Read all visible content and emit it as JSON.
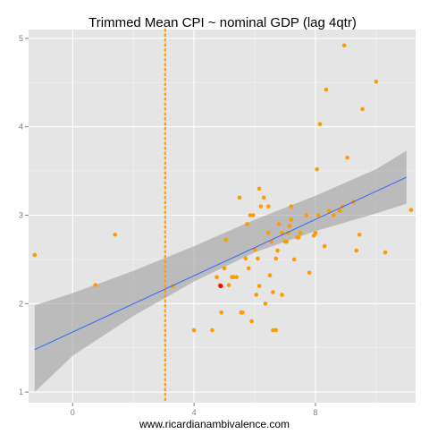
{
  "chart_data": {
    "type": "scatter",
    "title": "Trimmed Mean CPI ~ nominal GDP (lag 4qtr)",
    "xlabel": "www.ricardianambivalence.com",
    "ylabel": "",
    "xlim": [
      -1.45,
      11.3
    ],
    "ylim": [
      0.88,
      5.1
    ],
    "x_ticks": [
      0,
      4,
      8
    ],
    "y_ticks": [
      1,
      2,
      3,
      4,
      5
    ],
    "grid": true,
    "background_color": "#e5e5e5",
    "grid_color": "#ffffff",
    "point_color": "#ff9a00",
    "highlight_color": "#ff0000",
    "fit_line_color": "#3366ff",
    "band_color": "#999999",
    "vline_color": "#ff9a00",
    "vline_x": 3.05,
    "vline_style": "dotted",
    "fit_line": {
      "x": [
        -1.25,
        11.0
      ],
      "y": [
        1.48,
        3.43
      ]
    },
    "confidence_band": {
      "x": [
        -1.25,
        0,
        2,
        4,
        6,
        8,
        10,
        11.0
      ],
      "upper": [
        1.98,
        2.12,
        2.37,
        2.65,
        2.95,
        3.22,
        3.52,
        3.73
      ],
      "lower": [
        1.0,
        1.41,
        1.86,
        2.25,
        2.58,
        2.82,
        3.02,
        3.13
      ]
    },
    "points": [
      {
        "x": -1.25,
        "y": 2.55
      },
      {
        "x": 0.75,
        "y": 2.21
      },
      {
        "x": 1.4,
        "y": 2.78
      },
      {
        "x": 3.3,
        "y": 2.2
      },
      {
        "x": 4.0,
        "y": 1.7
      },
      {
        "x": 4.6,
        "y": 1.7
      },
      {
        "x": 4.75,
        "y": 2.3
      },
      {
        "x": 4.85,
        "y": 2.21
      },
      {
        "x": 4.9,
        "y": 1.9
      },
      {
        "x": 5.0,
        "y": 2.4
      },
      {
        "x": 5.05,
        "y": 2.72
      },
      {
        "x": 5.15,
        "y": 2.21
      },
      {
        "x": 5.25,
        "y": 2.3
      },
      {
        "x": 5.3,
        "y": 2.3
      },
      {
        "x": 5.4,
        "y": 2.3
      },
      {
        "x": 5.5,
        "y": 3.2
      },
      {
        "x": 5.55,
        "y": 1.9
      },
      {
        "x": 5.6,
        "y": 1.9
      },
      {
        "x": 5.7,
        "y": 2.51
      },
      {
        "x": 5.75,
        "y": 2.9
      },
      {
        "x": 5.8,
        "y": 2.4
      },
      {
        "x": 5.85,
        "y": 3.0
      },
      {
        "x": 5.9,
        "y": 1.8
      },
      {
        "x": 5.95,
        "y": 3.0
      },
      {
        "x": 6.0,
        "y": 2.61
      },
      {
        "x": 6.05,
        "y": 2.1
      },
      {
        "x": 6.1,
        "y": 2.51
      },
      {
        "x": 6.15,
        "y": 3.3
      },
      {
        "x": 6.15,
        "y": 2.2
      },
      {
        "x": 6.2,
        "y": 3.1
      },
      {
        "x": 6.3,
        "y": 3.2
      },
      {
        "x": 6.35,
        "y": 2.0
      },
      {
        "x": 6.45,
        "y": 3.1
      },
      {
        "x": 6.45,
        "y": 2.8
      },
      {
        "x": 6.5,
        "y": 2.32
      },
      {
        "x": 6.55,
        "y": 2.7
      },
      {
        "x": 6.6,
        "y": 2.13
      },
      {
        "x": 6.6,
        "y": 1.7
      },
      {
        "x": 6.7,
        "y": 1.7
      },
      {
        "x": 6.7,
        "y": 2.51
      },
      {
        "x": 6.75,
        "y": 2.6
      },
      {
        "x": 6.8,
        "y": 2.9
      },
      {
        "x": 6.9,
        "y": 2.1
      },
      {
        "x": 6.9,
        "y": 2.8
      },
      {
        "x": 7.0,
        "y": 2.7
      },
      {
        "x": 7.05,
        "y": 2.7
      },
      {
        "x": 7.1,
        "y": 2.8
      },
      {
        "x": 7.15,
        "y": 2.88
      },
      {
        "x": 7.2,
        "y": 2.95
      },
      {
        "x": 7.2,
        "y": 3.1
      },
      {
        "x": 7.3,
        "y": 2.5
      },
      {
        "x": 7.4,
        "y": 2.75
      },
      {
        "x": 7.45,
        "y": 2.75
      },
      {
        "x": 7.5,
        "y": 2.8
      },
      {
        "x": 7.7,
        "y": 3.0
      },
      {
        "x": 7.8,
        "y": 2.35
      },
      {
        "x": 7.95,
        "y": 2.77
      },
      {
        "x": 8.0,
        "y": 2.8
      },
      {
        "x": 8.05,
        "y": 3.52
      },
      {
        "x": 8.1,
        "y": 3.0
      },
      {
        "x": 8.15,
        "y": 4.03
      },
      {
        "x": 8.3,
        "y": 2.65
      },
      {
        "x": 8.35,
        "y": 4.42
      },
      {
        "x": 8.45,
        "y": 3.05
      },
      {
        "x": 8.6,
        "y": 3.0
      },
      {
        "x": 8.8,
        "y": 3.05
      },
      {
        "x": 8.9,
        "y": 3.1
      },
      {
        "x": 8.95,
        "y": 4.92
      },
      {
        "x": 9.05,
        "y": 3.65
      },
      {
        "x": 9.25,
        "y": 3.15
      },
      {
        "x": 9.35,
        "y": 2.6
      },
      {
        "x": 9.45,
        "y": 2.78
      },
      {
        "x": 9.55,
        "y": 4.2
      },
      {
        "x": 10.0,
        "y": 4.51
      },
      {
        "x": 10.3,
        "y": 2.58
      },
      {
        "x": 11.15,
        "y": 3.06
      }
    ],
    "highlight_points": [
      {
        "x": 4.88,
        "y": 2.2
      }
    ]
  }
}
